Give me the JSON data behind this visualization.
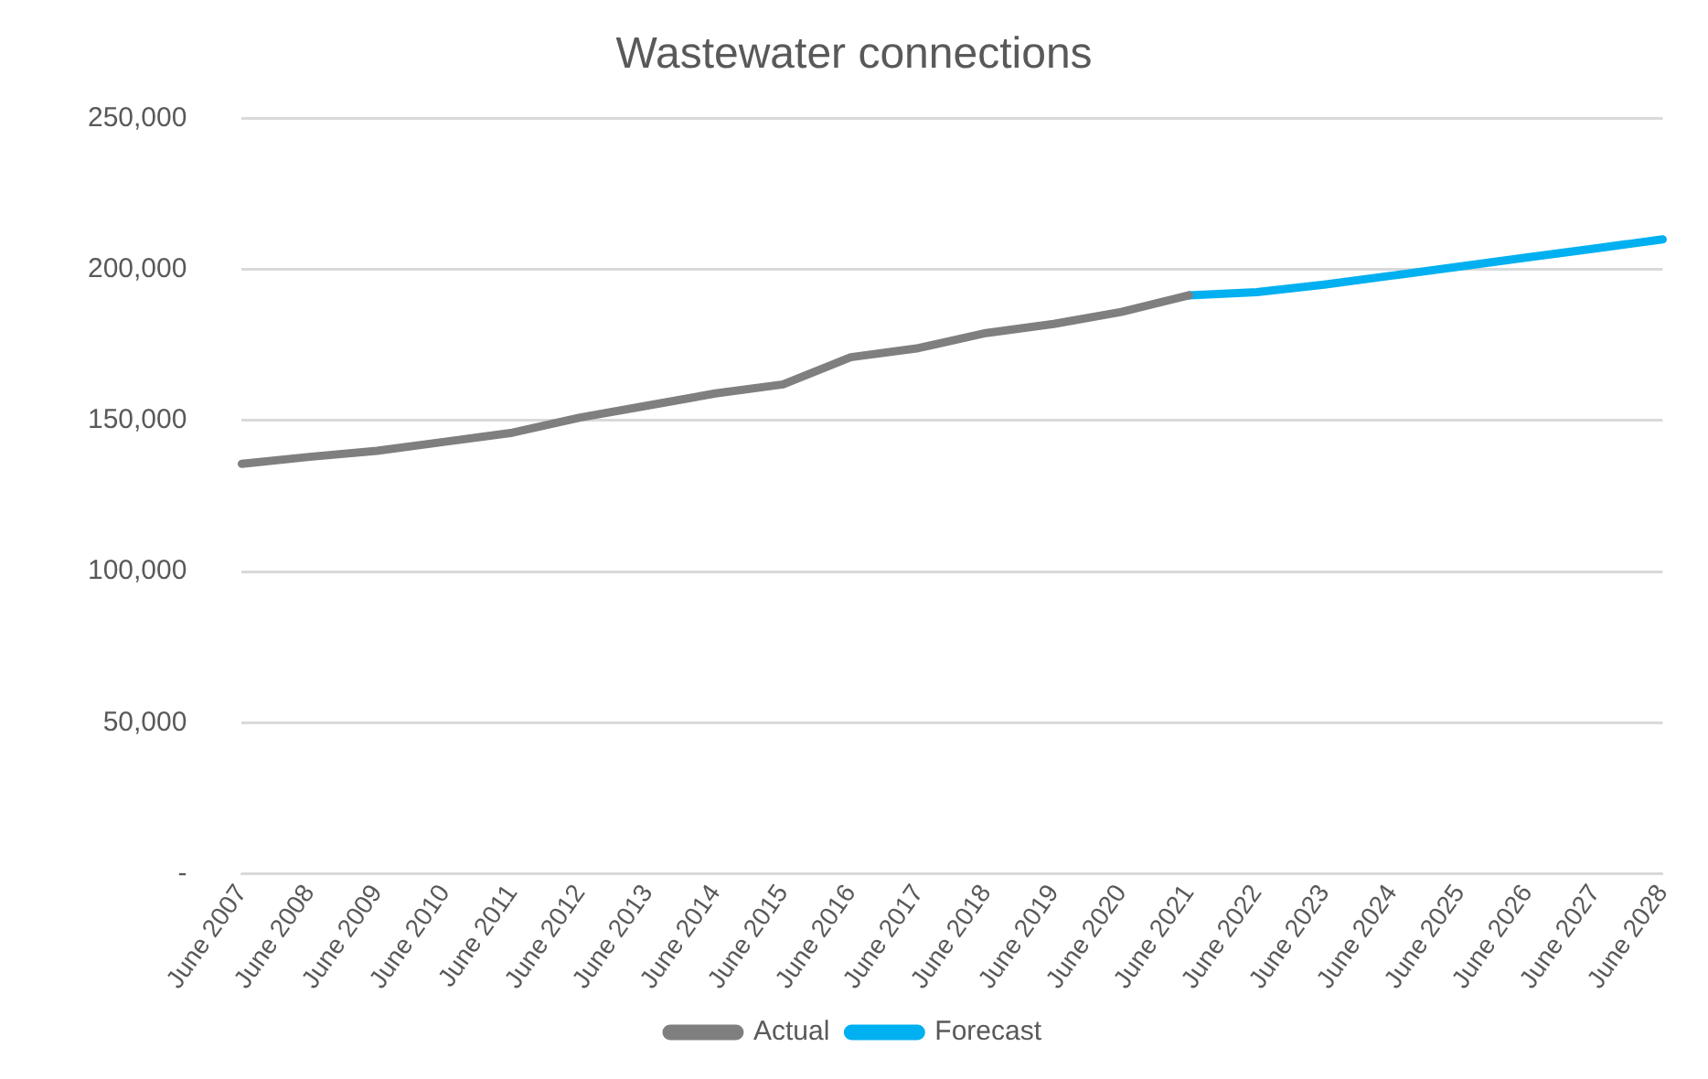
{
  "chart_data": {
    "type": "line",
    "title": "Wastewater connections",
    "categories": [
      "June 2007",
      "June 2008",
      "June 2009",
      "June 2010",
      "June 2011",
      "June 2012",
      "June 2013",
      "June 2014",
      "June 2015",
      "June 2016",
      "June 2017",
      "June 2018",
      "June 2019",
      "June 2020",
      "June 2021",
      "June 2022",
      "June 2023",
      "June 2024",
      "June 2025",
      "June 2026",
      "June 2027",
      "June 2028"
    ],
    "series": [
      {
        "name": "Actual",
        "color": "#7f7f7f",
        "values": [
          135700,
          138000,
          140000,
          143000,
          146000,
          151000,
          155000,
          159000,
          162000,
          171000,
          174000,
          179000,
          182000,
          186000,
          191500,
          null,
          null,
          null,
          null,
          null,
          null,
          null
        ]
      },
      {
        "name": "Forecast",
        "color": "#00b0f0",
        "values": [
          null,
          null,
          null,
          null,
          null,
          null,
          null,
          null,
          null,
          null,
          null,
          null,
          null,
          null,
          191500,
          192500,
          195000,
          198000,
          201000,
          204000,
          207000,
          210000
        ]
      }
    ],
    "ylim": [
      0,
      250000
    ],
    "yticks": [
      {
        "value": 0,
        "label": "-"
      },
      {
        "value": 50000,
        "label": "50,000"
      },
      {
        "value": 100000,
        "label": "100,000"
      },
      {
        "value": 150000,
        "label": "150,000"
      },
      {
        "value": 200000,
        "label": "200,000"
      },
      {
        "value": 250000,
        "label": "250,000"
      }
    ],
    "grid": "y",
    "legend": "bottom",
    "marker": "none",
    "line_style": "solid"
  }
}
